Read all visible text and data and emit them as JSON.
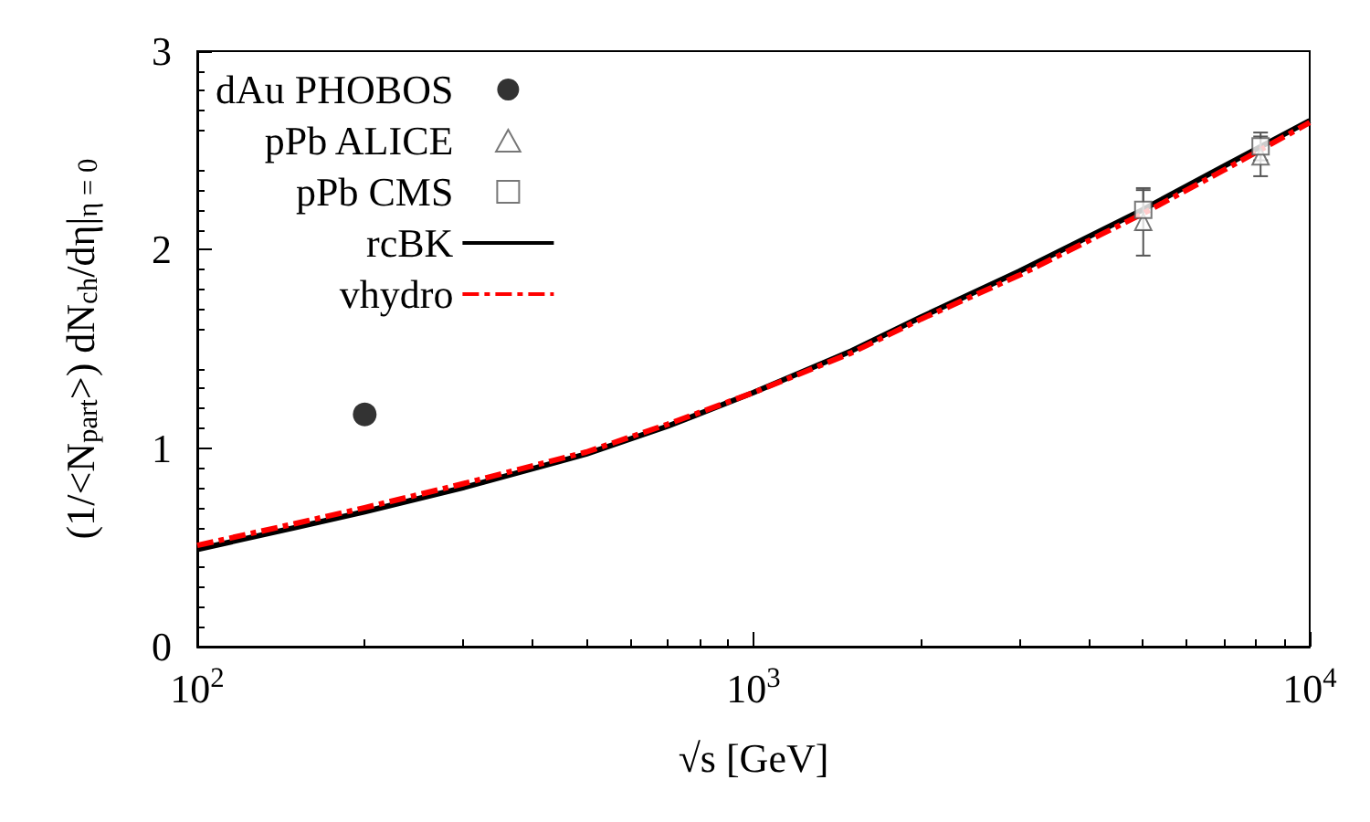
{
  "chart_data": {
    "type": "scatter",
    "xlabel": "√s [GeV]",
    "ylabel": "(1/<N$_{part}$>) dN$_{ch}$/dη|$_{η = 0}$",
    "log": "x",
    "xlim": [
      100,
      10000
    ],
    "xticks": [
      {
        "value": 100,
        "label": "10$^{2}$"
      },
      {
        "value": 1000,
        "label": "10$^{3}$"
      },
      {
        "value": 10000,
        "label": "10$^{4}$"
      }
    ],
    "ylim": [
      0,
      3
    ],
    "yticks": [
      0,
      1,
      2,
      3
    ],
    "grid": false,
    "legend": "top left",
    "series": [
      {
        "name": "dAu PHOBOS",
        "marker": "circle",
        "color": "#000000",
        "x": [
          200
        ],
        "values": [
          1.17
        ]
      },
      {
        "name": "pPb ALICE",
        "marker": "triangle",
        "color": "#555555",
        "x": [
          5020,
          8160
        ],
        "values": [
          2.14,
          2.47
        ],
        "errors": [
          0.17,
          0.1
        ]
      },
      {
        "name": "pPb CMS",
        "marker": "square",
        "color": "#555555",
        "x": [
          5020,
          8160
        ],
        "values": [
          2.2,
          2.52
        ],
        "errors": [
          0.1,
          0.07
        ]
      },
      {
        "name": "rcBK",
        "type": "line",
        "marker": "none",
        "line_style": "solid",
        "color": "#000000",
        "x": [
          100,
          150,
          200,
          300,
          500,
          700,
          1000,
          1500,
          2000,
          3000,
          5000,
          7000,
          10000
        ],
        "values": [
          0.49,
          0.6,
          0.68,
          0.8,
          0.97,
          1.11,
          1.28,
          1.49,
          1.66,
          1.89,
          2.2,
          2.42,
          2.65
        ]
      },
      {
        "name": "vhydro",
        "type": "line",
        "marker": "none",
        "line_style": "dashed",
        "color": "#ff0000",
        "x": [
          100,
          150,
          200,
          300,
          500,
          700,
          1000,
          1500,
          2000,
          3000,
          5000,
          7000,
          10000
        ],
        "values": [
          0.51,
          0.62,
          0.7,
          0.82,
          0.98,
          1.12,
          1.28,
          1.48,
          1.65,
          1.87,
          2.18,
          2.4,
          2.64
        ]
      }
    ]
  }
}
